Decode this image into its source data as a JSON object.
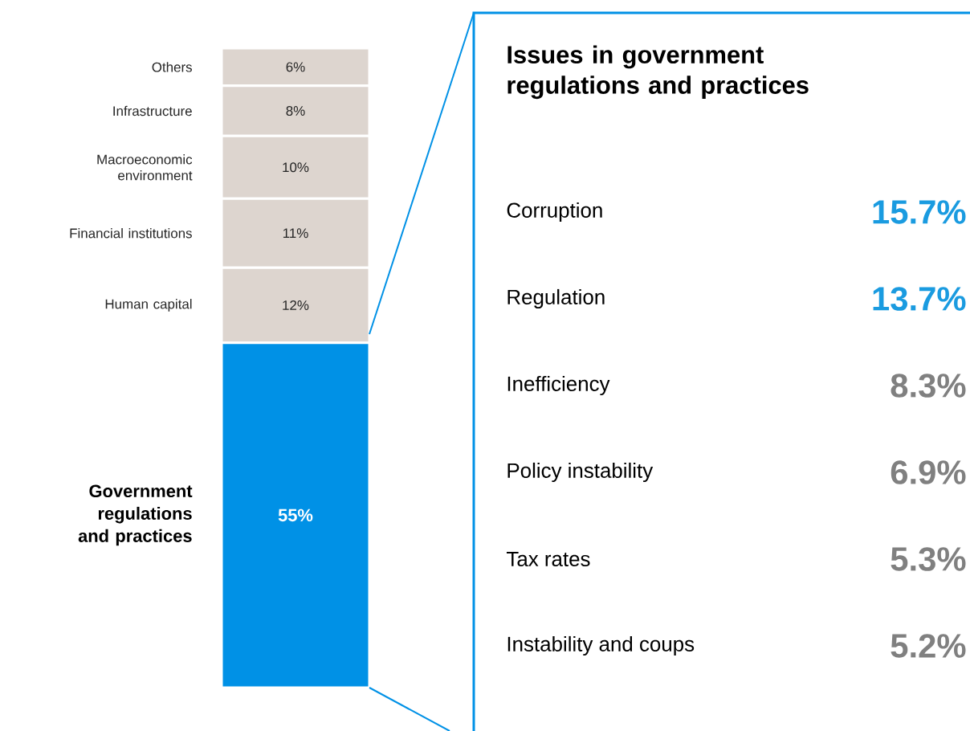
{
  "chart_data": [
    {
      "type": "bar",
      "stacked": true,
      "categories": [
        null
      ],
      "series": [
        {
          "name": "Government regulations and practices",
          "color": "#0091e6",
          "values": [
            55
          ],
          "value_labels": [
            "55%"
          ]
        },
        {
          "name": "Human capital",
          "color": "#ddd5cf",
          "values": [
            12
          ],
          "value_labels": [
            "12%"
          ]
        },
        {
          "name": "Financial institutions",
          "color": "#ddd5cf",
          "values": [
            11
          ],
          "value_labels": [
            "11%"
          ]
        },
        {
          "name": "Macroeconomic environment",
          "color": "#ddd5cf",
          "values": [
            10
          ],
          "value_labels": [
            "10%"
          ]
        },
        {
          "name": "Infrastructure",
          "color": "#ddd5cf",
          "values": [
            8
          ],
          "value_labels": [
            "8%"
          ]
        },
        {
          "name": "Others",
          "color": "#ddd5cf",
          "values": [
            6
          ],
          "value_labels": [
            "6%"
          ]
        }
      ]
    },
    {
      "type": "other",
      "title": "Issues in government regulations and practices",
      "categories": [
        "Corruption",
        "Regulation",
        "Inefficiency",
        "Policy instability",
        "Tax rates",
        "Instability and coups"
      ],
      "value_labels": [
        "15.7%",
        "13.7%",
        "8.3%",
        "6.9%",
        "5.3%",
        "5.2%"
      ],
      "colors": [
        "#1a9be0",
        "#1a9be0",
        "#808080",
        "#808080",
        "#808080",
        "#808080"
      ]
    }
  ]
}
